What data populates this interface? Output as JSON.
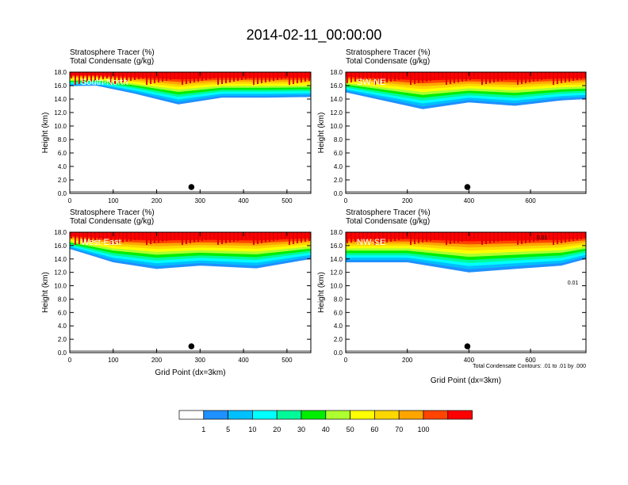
{
  "title": "2014-02-11_00:00:00",
  "chart_data": [
    {
      "type": "heatmap",
      "panel_label": "South-North",
      "top_labels": [
        "Stratosphere Tracer   (%)",
        "Total Condensate   (g/kg)"
      ],
      "xlabel": "",
      "ylabel": "Height (km)",
      "xlim": [
        0,
        555
      ],
      "ylim": [
        0,
        18
      ],
      "xticks": [
        "0",
        "100",
        "200",
        "300",
        "400",
        "500"
      ],
      "yticks": [
        "0.0",
        "2.0",
        "4.0",
        "6.0",
        "8.0",
        "10.0",
        "12.0",
        "14.0",
        "16.0",
        "18.0"
      ],
      "marker_x": 280,
      "stratosphere_base_km": [
        {
          "x": 0,
          "y": 15.9
        },
        {
          "x": 60,
          "y": 16.0
        },
        {
          "x": 150,
          "y": 14.8
        },
        {
          "x": 250,
          "y": 13.2
        },
        {
          "x": 350,
          "y": 14.2
        },
        {
          "x": 450,
          "y": 14.2
        },
        {
          "x": 555,
          "y": 14.3
        }
      ]
    },
    {
      "type": "heatmap",
      "panel_label": "SW-NE",
      "top_labels": [
        "Stratosphere Tracer   (%)",
        "Total Condensate   (g/kg)"
      ],
      "xlabel": "",
      "ylabel": "Height (km)",
      "xlim": [
        0,
        780
      ],
      "ylim": [
        0,
        18
      ],
      "xticks": [
        "0",
        "200",
        "400",
        "600"
      ],
      "yticks": [
        "0.0",
        "2.0",
        "4.0",
        "6.0",
        "8.0",
        "10.0",
        "12.0",
        "14.0",
        "16.0",
        "18.0"
      ],
      "marker_x": 395,
      "stratosphere_base_km": [
        {
          "x": 0,
          "y": 15.0
        },
        {
          "x": 100,
          "y": 14.0
        },
        {
          "x": 250,
          "y": 12.5
        },
        {
          "x": 400,
          "y": 13.5
        },
        {
          "x": 550,
          "y": 13.0
        },
        {
          "x": 700,
          "y": 13.8
        },
        {
          "x": 780,
          "y": 14.0
        }
      ]
    },
    {
      "type": "heatmap",
      "panel_label": "West-East",
      "top_labels": [
        "Stratosphere Tracer   (%)",
        "Total Condensate   (g/kg)"
      ],
      "xlabel": "Grid Point (dx=3km)",
      "ylabel": "Height (km)",
      "xlim": [
        0,
        555
      ],
      "ylim": [
        0,
        18
      ],
      "xticks": [
        "0",
        "100",
        "200",
        "300",
        "400",
        "500"
      ],
      "yticks": [
        "0.0",
        "2.0",
        "4.0",
        "6.0",
        "8.0",
        "10.0",
        "12.0",
        "14.0",
        "16.0",
        "18.0"
      ],
      "marker_x": 280,
      "stratosphere_base_km": [
        {
          "x": 0,
          "y": 15.5
        },
        {
          "x": 100,
          "y": 13.5
        },
        {
          "x": 200,
          "y": 12.5
        },
        {
          "x": 300,
          "y": 13.0
        },
        {
          "x": 430,
          "y": 12.6
        },
        {
          "x": 555,
          "y": 14.0
        }
      ]
    },
    {
      "type": "heatmap",
      "panel_label": "NW-SE",
      "top_labels": [
        "Stratosphere Tracer   (%)",
        "Total Condensate   (g/kg)"
      ],
      "xlabel": "Grid Point (dx=3km)",
      "ylabel": "Height (km)",
      "xlim": [
        0,
        780
      ],
      "ylim": [
        0,
        18
      ],
      "xticks": [
        "0",
        "200",
        "400",
        "600"
      ],
      "yticks": [
        "0.0",
        "2.0",
        "4.0",
        "6.0",
        "8.0",
        "10.0",
        "12.0",
        "14.0",
        "16.0",
        "18.0"
      ],
      "marker_x": 395,
      "stratosphere_base_km": [
        {
          "x": 0,
          "y": 13.5
        },
        {
          "x": 200,
          "y": 13.5
        },
        {
          "x": 400,
          "y": 12.0
        },
        {
          "x": 550,
          "y": 12.5
        },
        {
          "x": 700,
          "y": 13.0
        },
        {
          "x": 780,
          "y": 14.0
        }
      ],
      "contour_note": "Total Condensate Contours: .01 to .01 by .000",
      "contour_labels": [
        "0.01",
        "0.01"
      ]
    }
  ],
  "colorbar": {
    "levels": [
      "1",
      "5",
      "10",
      "20",
      "30",
      "40",
      "50",
      "60",
      "70",
      "100"
    ],
    "colors": [
      "#ffffff",
      "#1e90ff",
      "#00bfff",
      "#00ffff",
      "#00fa9a",
      "#00ee00",
      "#adff2f",
      "#ffff00",
      "#ffd700",
      "#ffa500",
      "#ff4500",
      "#ff0000"
    ]
  }
}
